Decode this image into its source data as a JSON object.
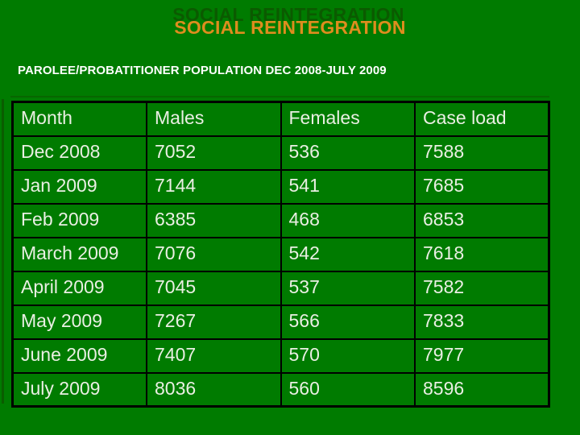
{
  "slide": {
    "title": "SOCIAL REINTEGRATION",
    "subtitle": "PAROLEE/PROBATITIONER POPULATION DEC 2008-JULY 2009"
  },
  "colors": {
    "slide_background": "#007B00",
    "title_text": "#DE8D1E",
    "title_echo": "#0B5A00",
    "subtitle_text": "#FFFFFF",
    "table_text": "#EAEFE3",
    "table_border": "#000000"
  },
  "table": {
    "columns": [
      "Month",
      "Males",
      "Females",
      "Case load"
    ],
    "rows": [
      [
        "Dec 2008",
        "7052",
        "536",
        "7588"
      ],
      [
        "Jan 2009",
        "7144",
        "541",
        "7685"
      ],
      [
        "Feb 2009",
        "6385",
        "468",
        "6853"
      ],
      [
        "March 2009",
        "7076",
        "542",
        "7618"
      ],
      [
        "April 2009",
        "7045",
        "537",
        "7582"
      ],
      [
        "May 2009",
        "7267",
        "566",
        "7833"
      ],
      [
        "June 2009",
        "7407",
        "570",
        "7977"
      ],
      [
        "July 2009",
        "8036",
        "560",
        "8596"
      ]
    ]
  },
  "chart_data": {
    "type": "table",
    "title": "SOCIAL REINTEGRATION",
    "subtitle": "PAROLEE/PROBATITIONER POPULATION DEC 2008-JULY 2009",
    "columns": [
      "Month",
      "Males",
      "Females",
      "Case load"
    ],
    "rows": [
      {
        "month": "Dec 2008",
        "males": 7052,
        "females": 536,
        "case_load": 7588
      },
      {
        "month": "Jan 2009",
        "males": 7144,
        "females": 541,
        "case_load": 7685
      },
      {
        "month": "Feb 2009",
        "males": 6385,
        "females": 468,
        "case_load": 6853
      },
      {
        "month": "March 2009",
        "males": 7076,
        "females": 542,
        "case_load": 7618
      },
      {
        "month": "April 2009",
        "males": 7045,
        "females": 537,
        "case_load": 7582
      },
      {
        "month": "May 2009",
        "males": 7267,
        "females": 566,
        "case_load": 7833
      },
      {
        "month": "June 2009",
        "males": 7407,
        "females": 570,
        "case_load": 7977
      },
      {
        "month": "July 2009",
        "males": 8036,
        "females": 560,
        "case_load": 8596
      }
    ]
  }
}
